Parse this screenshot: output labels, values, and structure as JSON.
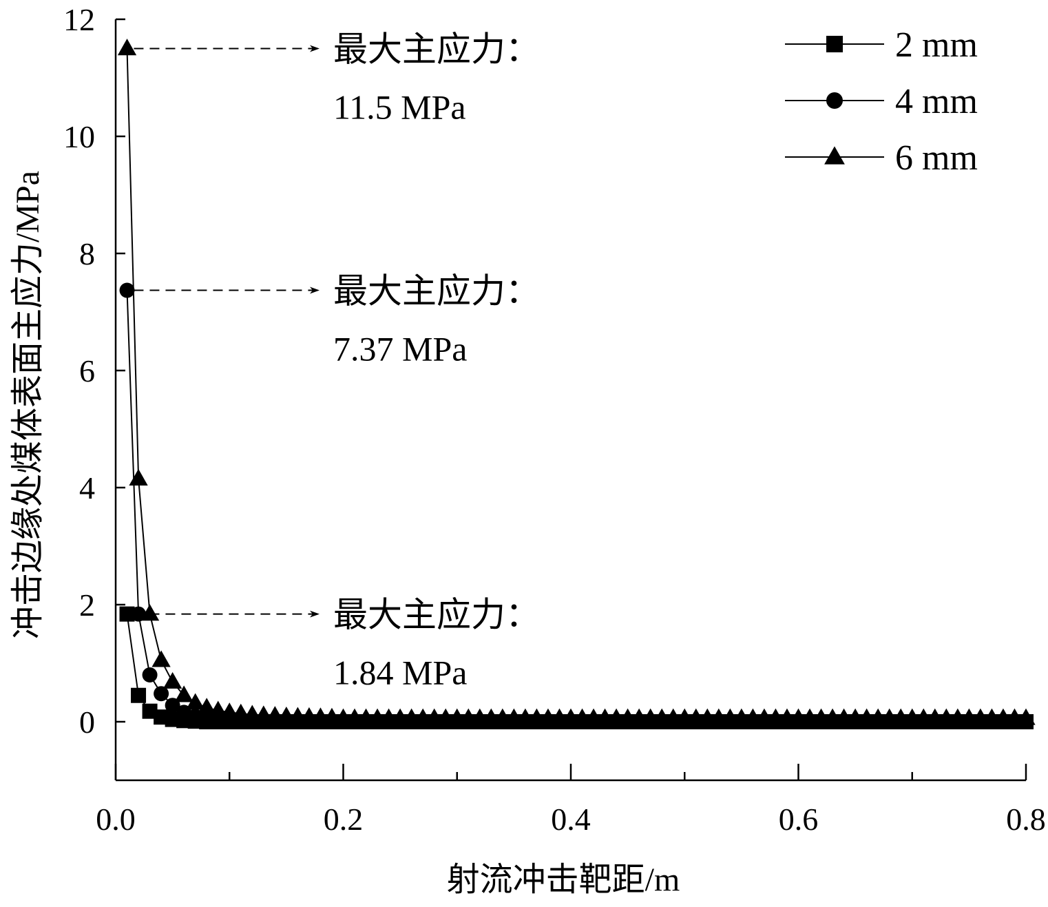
{
  "chart_data": {
    "type": "line",
    "xlabel": "射流冲击靶距/m",
    "ylabel": "冲击边缘处煤体表面主应力/MPa",
    "xlim": [
      0.0,
      0.8
    ],
    "ylim": [
      -1,
      12
    ],
    "xticks": [
      "0.0",
      "0.2",
      "0.4",
      "0.6",
      "0.8"
    ],
    "yticks": [
      "0",
      "2",
      "4",
      "6",
      "8",
      "10",
      "12"
    ],
    "x_minor_ticks": [
      0.1,
      0.3,
      0.5,
      0.7
    ],
    "grid": false,
    "legend": {
      "position": "top-right",
      "entries": [
        "2 mm",
        "4 mm",
        "6 mm"
      ]
    },
    "series": [
      {
        "name": "2 mm",
        "marker": "square",
        "x_start": 0.01,
        "x_step": 0.01,
        "x_end": 0.8,
        "head": [
          1.84,
          0.45,
          0.18,
          0.08,
          0.04,
          0.02,
          0.01
        ],
        "tail_value": 0.0
      },
      {
        "name": "4 mm",
        "marker": "circle",
        "x_start": 0.01,
        "x_step": 0.01,
        "x_end": 0.8,
        "head": [
          7.37,
          1.84,
          0.8,
          0.48,
          0.28,
          0.16,
          0.09,
          0.05,
          0.03,
          0.02
        ],
        "tail_value": 0.01
      },
      {
        "name": "6 mm",
        "marker": "triangle",
        "x_start": 0.01,
        "x_step": 0.01,
        "x_end": 0.8,
        "head": [
          11.5,
          4.15,
          1.84,
          1.05,
          0.68,
          0.45,
          0.32,
          0.24,
          0.19,
          0.16,
          0.14,
          0.12,
          0.11,
          0.1,
          0.09,
          0.085,
          0.08,
          0.075,
          0.07
        ],
        "tail_value": 0.06
      }
    ],
    "annotations": [
      {
        "line1": "最大主应力：",
        "line2": "11.5 MPa",
        "y": 11.5
      },
      {
        "line1": "最大主应力：",
        "line2": "7.37 MPa",
        "y": 7.37
      },
      {
        "line1": "最大主应力：",
        "line2": "1.84 MPa",
        "y": 1.84
      }
    ]
  }
}
